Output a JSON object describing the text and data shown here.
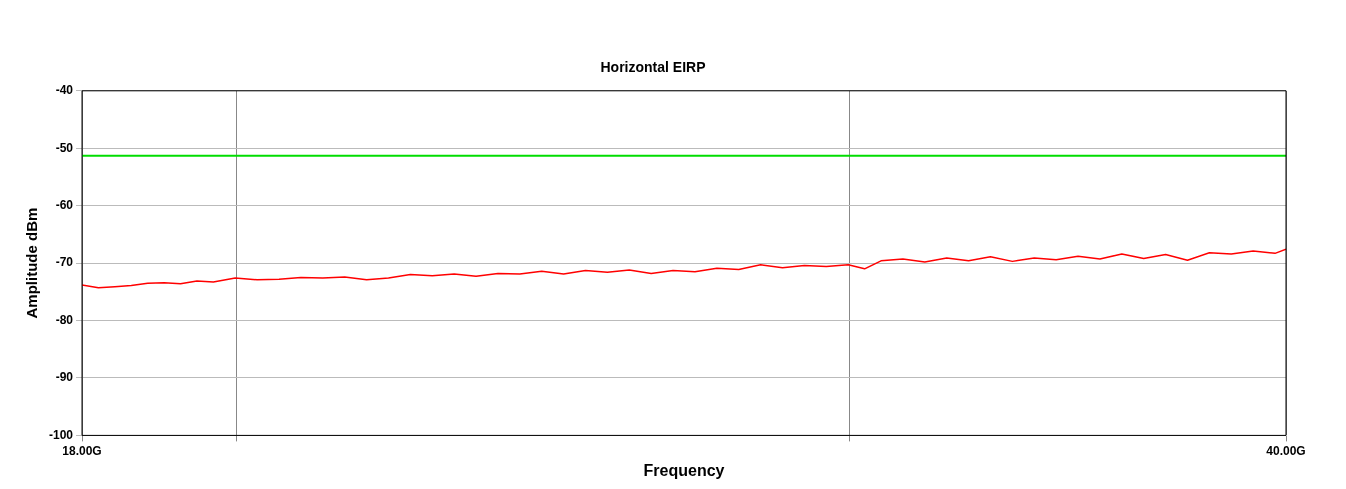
{
  "chart_data": {
    "type": "line",
    "title": "Horizontal EIRP",
    "xlabel": "Frequency",
    "ylabel": "Amplitude dBm",
    "xlim": [
      18,
      40
    ],
    "xticks": [
      {
        "value": 18,
        "label": "18.00G"
      },
      {
        "value": 20.83,
        "label": null
      },
      {
        "value": 32.03,
        "label": null
      },
      {
        "value": 40,
        "label": "40.00G"
      }
    ],
    "ylim": [
      -100,
      -40
    ],
    "yticks": [
      -100,
      -90,
      -80,
      -70,
      -60,
      -50,
      -40
    ],
    "grid": true,
    "legend": false,
    "marker": "none",
    "line_style": "solid",
    "ref_lines": [
      {
        "axis": "y",
        "value": -51.3,
        "color": "#00dd00"
      }
    ],
    "series": [
      {
        "color": "#ff0000",
        "x": [
          18,
          18.3,
          18.6,
          18.9,
          19.2,
          19.5,
          19.8,
          20.1,
          20.4,
          20.8,
          21.2,
          21.6,
          22,
          22.4,
          22.8,
          23.2,
          23.6,
          24,
          24.4,
          24.8,
          25.2,
          25.6,
          26,
          26.4,
          26.8,
          27.2,
          27.6,
          28,
          28.4,
          28.8,
          29.2,
          29.6,
          30,
          30.4,
          30.8,
          31.2,
          31.6,
          32,
          32.3,
          32.6,
          33,
          33.4,
          33.8,
          34.2,
          34.6,
          35,
          35.4,
          35.8,
          36.2,
          36.6,
          37,
          37.4,
          37.8,
          38.2,
          38.6,
          39,
          39.4,
          39.8,
          40
        ],
        "values": [
          -73.8,
          -74.3,
          -74.1,
          -73.9,
          -73.5,
          -73.4,
          -73.6,
          -73.1,
          -73.3,
          -72.6,
          -72.9,
          -72.8,
          -72.5,
          -72.6,
          -72.4,
          -72.9,
          -72.6,
          -72,
          -72.2,
          -71.9,
          -72.3,
          -71.8,
          -71.9,
          -71.4,
          -71.9,
          -71.3,
          -71.6,
          -71.2,
          -71.8,
          -71.3,
          -71.5,
          -70.9,
          -71.1,
          -70.3,
          -70.8,
          -70.4,
          -70.6,
          -70.3,
          -71,
          -69.6,
          -69.3,
          -69.8,
          -69.1,
          -69.6,
          -68.9,
          -69.7,
          -69.1,
          -69.4,
          -68.8,
          -69.3,
          -68.4,
          -69.2,
          -68.5,
          -69.5,
          -68.2,
          -68.4,
          -67.9,
          -68.3,
          -67.6
        ]
      }
    ]
  }
}
